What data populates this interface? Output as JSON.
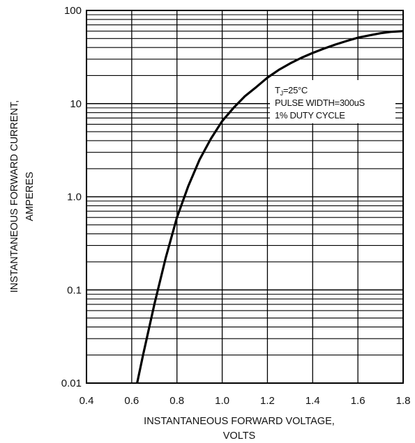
{
  "chart_data": {
    "type": "line",
    "x_scale": "linear",
    "y_scale": "log",
    "xlim": [
      0.4,
      1.8
    ],
    "ylim": [
      0.01,
      100
    ],
    "x_ticks": [
      "0.4",
      "0.6",
      "0.8",
      "1.0",
      "1.2",
      "1.4",
      "1.6",
      "1.8"
    ],
    "y_ticks": [
      "0.01",
      "0.1",
      "1.0",
      "10",
      "100"
    ],
    "xlabel_line1": "INSTANTANEOUS FORWARD VOLTAGE,",
    "xlabel_line2": "VOLTS",
    "ylabel_line1": "INSTANTANEOUS FORWARD CURRENT,",
    "ylabel_line2": "AMPERES",
    "grid": true,
    "annotation": {
      "line1_main": "T",
      "line1_sub": "J",
      "line1_rest": "=25°C",
      "line2": "PULSE WIDTH=300uS",
      "line3": "1% DUTY CYCLE"
    },
    "series": [
      {
        "x": [
          0.624,
          0.65,
          0.7,
          0.75,
          0.8,
          0.85,
          0.9,
          0.95,
          1.0,
          1.05,
          1.1,
          1.15,
          1.2,
          1.25,
          1.3,
          1.35,
          1.4,
          1.45,
          1.5,
          1.55,
          1.6,
          1.65,
          1.7,
          1.75,
          1.8
        ],
        "y": [
          0.01,
          0.02,
          0.07,
          0.22,
          0.6,
          1.3,
          2.5,
          4.2,
          6.5,
          9.0,
          12.0,
          15.0,
          19.0,
          23.0,
          27.0,
          31.0,
          35.0,
          39.0,
          43.0,
          47.0,
          51.0,
          54.0,
          57.0,
          59.0,
          60.0
        ]
      }
    ],
    "line_color": "#000000",
    "grid_color": "#000000"
  }
}
